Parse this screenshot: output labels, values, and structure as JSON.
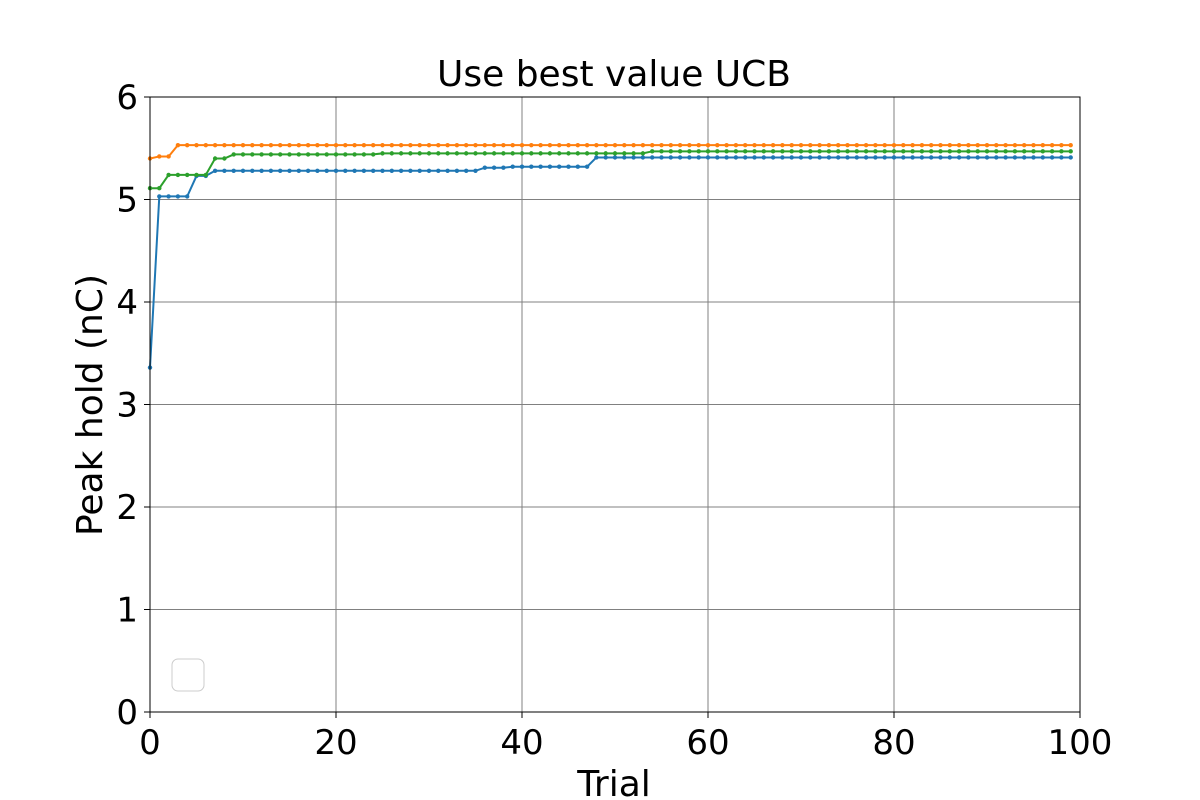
{
  "chart_data": {
    "type": "line",
    "title": "Use best value UCB",
    "xlabel": "Trial",
    "ylabel": "Peak hold (nC)",
    "xlim": [
      0,
      100
    ],
    "ylim": [
      0,
      6
    ],
    "xticks": [
      "0",
      "20",
      "40",
      "60",
      "80",
      "100"
    ],
    "yticks": [
      "0",
      "1",
      "2",
      "3",
      "4",
      "5",
      "6"
    ],
    "grid": true,
    "legend": {
      "placement": "lower-left",
      "entries": []
    },
    "marker": "dot",
    "series": [
      {
        "color": "#1f77b4",
        "steps": [
          [
            0,
            3.36
          ],
          [
            1,
            5.03
          ],
          [
            5,
            5.23
          ],
          [
            7,
            5.28
          ],
          [
            36,
            5.31
          ],
          [
            39,
            5.32
          ],
          [
            48,
            5.41
          ]
        ],
        "n": 100
      },
      {
        "color": "#ff7f0e",
        "steps": [
          [
            0,
            5.4
          ],
          [
            1,
            5.42
          ],
          [
            3,
            5.53
          ]
        ],
        "n": 100
      },
      {
        "color": "#2ca02c",
        "steps": [
          [
            0,
            5.11
          ],
          [
            2,
            5.24
          ],
          [
            7,
            5.4
          ],
          [
            9,
            5.44
          ],
          [
            25,
            5.45
          ],
          [
            54,
            5.47
          ]
        ],
        "n": 100
      }
    ]
  }
}
